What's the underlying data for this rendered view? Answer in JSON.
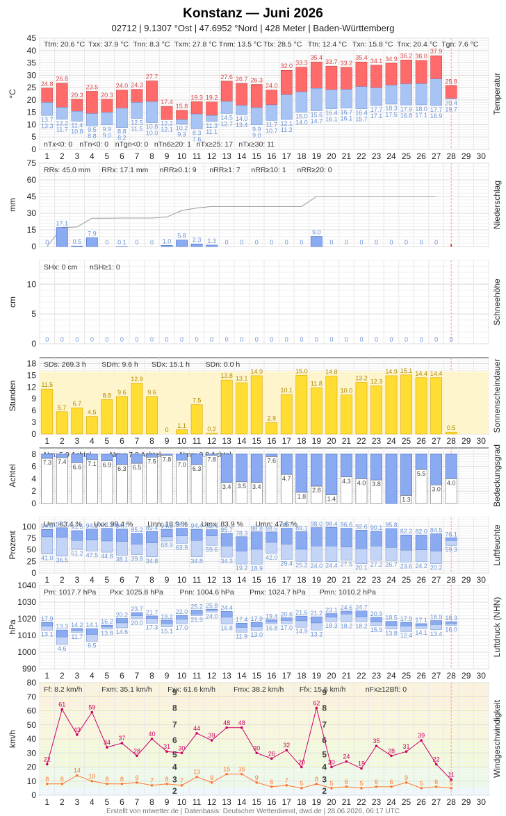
{
  "header": {
    "title": "Konstanz  —  Juni 2026",
    "subtitle": "02712  |  9.1307 °Ost  |  47.6952 °Nord  |  428 Meter  |  Baden-Württemberg"
  },
  "footer": "Erstellt von mtwetter.de | Datenbasis: Deutscher Wetterdienst, dwd.de | 28.06.2026, 06:17 UTC",
  "colors": {
    "tmax_bar": "#ff6b6b",
    "tmin_bar": "#a8c4f5",
    "precip_bar": "#8aabf2",
    "sun_bar": "#ffdd33",
    "sun_bg": "#fff5cc",
    "cloud_bar": "#8aabf2",
    "hum_dark": "#8aabf2",
    "hum_light": "#c3d4f7",
    "wind_max": "#cc0066",
    "wind_mean": "#ff7733",
    "red_text": "#d94444",
    "blue_text": "#6a93d6"
  },
  "chart_data": [
    {
      "type": "bar",
      "id": "temp",
      "ylabel": "°C",
      "side_label": "Temperatur",
      "ylim": [
        0,
        45
      ],
      "yticks": [
        0,
        5,
        10,
        15,
        20,
        25,
        30,
        35,
        40,
        45
      ],
      "x": [
        1,
        2,
        3,
        4,
        5,
        6,
        7,
        8,
        9,
        10,
        11,
        12,
        13,
        14,
        15,
        16,
        17,
        18,
        19,
        20,
        21,
        22,
        23,
        24,
        25,
        26,
        27,
        28,
        29,
        30
      ],
      "top_stats": [
        "Ttm: 20.6 °C",
        "Txx: 37.9 °C",
        "Tnn: 8.3 °C",
        "Txm: 27.8 °C",
        "Tnm: 13.5 °C",
        "Ttx: 28.5 °C",
        "Ttn: 12.4 °C",
        "Txn: 15.8 °C",
        "Tnx: 20.4 °C",
        "Tgn: 7.6 °C"
      ],
      "bottom_stats": [
        "nTx<0: 0",
        "nTn<0: 0",
        "nTgn<0: 0",
        "nTn6≥20: 1",
        "nTx≥25: 17",
        "nTx≥30: 11"
      ],
      "series": [
        {
          "name": "Tmax",
          "values": [
            24.8,
            26.8,
            20.3,
            23.5,
            20.3,
            24.0,
            24.3,
            27.7,
            17.4,
            15.8,
            19.3,
            19.2,
            27.6,
            26.7,
            26.3,
            24.0,
            32.0,
            33.3,
            35.4,
            33.7,
            33.2,
            35.4,
            34.1,
            34.9,
            36.2,
            36.0,
            37.9,
            25.8,
            null,
            null
          ]
        },
        {
          "name": "Tmean",
          "values": [
            19.0,
            17.0,
            15.4,
            14.5,
            15.0,
            16.7,
            19.0,
            19.3,
            12.0,
            12.0,
            14.3,
            13.7,
            19.4,
            17.8,
            16.9,
            18.0,
            22.1,
            23.3,
            24.7,
            24.1,
            24.3,
            25.4,
            24.9,
            26.0,
            26.5,
            26.6,
            28.5,
            20.6,
            null,
            null
          ]
        },
        {
          "name": "Tmin",
          "values": [
            13.7,
            12.2,
            11.4,
            9.5,
            9.9,
            8.8,
            12.5,
            10.8,
            12.2,
            10.2,
            8.3,
            11.3,
            14.5,
            14.0,
            9.9,
            11.7,
            12.1,
            15.0,
            15.6,
            16.4,
            16.7,
            16.4,
            17.7,
            18.3,
            17.9,
            18.0,
            17.7,
            20.4,
            null,
            null
          ]
        },
        {
          "name": "Tg",
          "values": [
            13.3,
            11.7,
            10.8,
            8.8,
            9.0,
            8.2,
            11.5,
            10.0,
            12.1,
            9.3,
            7.6,
            11.1,
            12.7,
            13.4,
            9.0,
            10.7,
            11.2,
            14.0,
            14.7,
            16.1,
            16.1,
            15.7,
            17.1,
            17.5,
            16.8,
            17.1,
            16.9,
            19.7,
            null,
            null
          ]
        }
      ]
    },
    {
      "type": "bar",
      "id": "precip",
      "ylabel": "mm",
      "side_label": "Niederschlag",
      "ylim": [
        0,
        75
      ],
      "yticks": [
        0,
        15,
        30,
        45,
        60,
        75
      ],
      "ytick_labels": [
        "0",
        "15",
        "30",
        "45",
        "60",
        "75"
      ],
      "top_stats": [
        "RRs: 45.0 mm",
        "RRx: 17.1 mm",
        "nRR≥0.1: 9",
        "nRR≥1: 7",
        "nRR≥10: 1",
        "nRR≥20: 0"
      ],
      "values": [
        0,
        17.1,
        0.5,
        7.9,
        0,
        0.1,
        0,
        0,
        1.0,
        5.8,
        2.3,
        1.3,
        0,
        0,
        0,
        0,
        0,
        0,
        9.0,
        0,
        0,
        0,
        0,
        0,
        0,
        0,
        0,
        0,
        null,
        null
      ],
      "labels": [
        "0",
        "17.1",
        "0.5",
        "7.9",
        "0",
        "0.1",
        "0",
        "0",
        "1.0",
        "5.8",
        "2.3",
        "1.3",
        "0",
        "0",
        "0",
        "0",
        "0",
        "0",
        "9.0",
        "0",
        "0",
        "0",
        "0",
        "0",
        "0",
        "0",
        "0",
        "",
        "",
        ""
      ],
      "series": [
        {
          "name": "cumulative",
          "values": [
            0,
            17.1,
            17.6,
            25.5,
            25.5,
            25.6,
            25.6,
            25.6,
            26.6,
            32.4,
            34.7,
            36.0,
            36.0,
            36.0,
            36.0,
            36.0,
            36.0,
            36.0,
            45.0,
            45.0,
            45.0,
            45.0,
            45.0,
            45.0,
            45.0,
            45.0,
            45.0,
            null,
            null,
            null
          ]
        }
      ]
    },
    {
      "type": "bar",
      "id": "snow",
      "ylabel": "cm",
      "side_label": "Schneehöhe",
      "ylim": [
        0,
        14
      ],
      "yticks": [
        0,
        5,
        10
      ],
      "top_stats": [
        "SHx: 0 cm",
        "nSH≥1: 0"
      ],
      "values": [
        0,
        0,
        0,
        0,
        0,
        0,
        0,
        0,
        0,
        0,
        0,
        0,
        0,
        0,
        0,
        0,
        0,
        0,
        0,
        0,
        0,
        0,
        0,
        0,
        0,
        0,
        0,
        0,
        null,
        null
      ]
    },
    {
      "type": "bar",
      "id": "sun",
      "ylabel": "Stunden",
      "side_label": "Sonnenscheindauer",
      "ylim": [
        0,
        19.5
      ],
      "yticks": [
        0,
        3,
        6,
        9,
        12,
        15,
        18
      ],
      "top_stats": [
        "SDs: 269.3 h",
        "SDm: 9.6 h",
        "SDx: 15.1 h",
        "SDn: 0.0 h"
      ],
      "values": [
        11.5,
        5.7,
        6.7,
        4.5,
        8.8,
        9.6,
        12.9,
        9.6,
        0,
        1.1,
        7.5,
        0.2,
        13.8,
        13.1,
        14.9,
        2.9,
        10.1,
        15.0,
        11.8,
        14.8,
        10.0,
        13.2,
        12.3,
        14.9,
        15.1,
        14.4,
        14.4,
        0.5,
        null,
        null
      ],
      "possible": [
        16,
        16,
        16,
        16,
        16,
        16,
        16,
        16,
        16,
        16,
        16,
        16,
        16,
        16,
        16,
        16,
        16,
        16,
        16,
        16,
        16,
        16,
        16,
        16,
        16,
        16,
        16,
        16,
        16,
        16
      ]
    },
    {
      "type": "bar",
      "id": "cloud",
      "ylabel": "Achtel",
      "side_label": "Bedeckungsgrad",
      "ylim": [
        0,
        9
      ],
      "yticks": [
        0,
        2,
        4,
        6,
        8
      ],
      "top_stats": [
        "Nm: 5.0 Achtel",
        "Nmx: 7.8 Achtel",
        "Nmn: 0.0 Achtel"
      ],
      "values": [
        7.3,
        7.4,
        6.6,
        7.1,
        6.9,
        6.3,
        6.5,
        7.5,
        7.8,
        7.0,
        6.3,
        7.8,
        3.4,
        3.5,
        3.4,
        7.6,
        4.7,
        1.8,
        2.8,
        1.4,
        4.3,
        4.0,
        3.8,
        0.0,
        1.3,
        5.5,
        3.0,
        4.0,
        null,
        null
      ]
    },
    {
      "type": "bar",
      "id": "humidity",
      "ylabel": "Prozent",
      "side_label": "Luftfeuchte",
      "ylim": [
        0,
        120
      ],
      "yticks": [
        0,
        25,
        50,
        75,
        100
      ],
      "top_stats": [
        "Um: 63.4 %",
        "Uxx: 98.4 %",
        "Unn: 18.9 %",
        "Umx: 83.9 %",
        "Umn: 47.6 %"
      ],
      "series": [
        {
          "name": "Umax",
          "values": [
            94.0,
            97.7,
            91.5,
            94.8,
            96.3,
            94.7,
            85.2,
            89.4,
            94.5,
            96.5,
            94.4,
            93.4,
            85.7,
            78.3,
            88.8,
            88.6,
            96.7,
            89.1,
            98.0,
            98.4,
            96.6,
            92.6,
            90.1,
            95.8,
            82.2,
            82.0,
            84.5,
            76.1,
            null,
            null
          ]
        },
        {
          "name": "Umean",
          "values": [
            78,
            77,
            70,
            71,
            69,
            68,
            62,
            65,
            78,
            80,
            70,
            80,
            58,
            47,
            51,
            66,
            62,
            51,
            58,
            58,
            56,
            52,
            58,
            55,
            49,
            50,
            47,
            70,
            null,
            null
          ]
        },
        {
          "name": "Umin",
          "values": [
            41.0,
            36.5,
            51.2,
            47.5,
            44.8,
            38.1,
            39.8,
            34.8,
            68.9,
            63.9,
            34.8,
            59.6,
            34.3,
            19.2,
            18.9,
            42.0,
            29.4,
            25.2,
            24.0,
            24.4,
            27.5,
            20.1,
            27.2,
            26.7,
            23.6,
            24.2,
            20.2,
            59.3,
            null,
            null
          ]
        }
      ]
    },
    {
      "type": "bar",
      "id": "pressure",
      "ylabel": "hPa",
      "side_label": "Luftdruck (NHN)",
      "ylim": [
        990,
        1040
      ],
      "yticks": [
        990,
        1000,
        1010,
        1020,
        1030,
        1040
      ],
      "top_stats": [
        "Pm: 1017.7 hPa",
        "Pxx: 1025.8 hPa",
        "Pnn: 1004.6 hPa",
        "Pmx: 1024.7 hPa",
        "Pmn: 1010.2 hPa"
      ],
      "series": [
        {
          "name": "Pmax",
          "values": [
            17.9,
            13.3,
            14.2,
            14.1,
            16.2,
            20.2,
            23.7,
            21.7,
            19.2,
            22.0,
            25.2,
            25.8,
            24.4,
            17.4,
            17.9,
            19.4,
            20.6,
            21.6,
            21.2,
            23.1,
            24.6,
            24.7,
            20.9,
            18.5,
            17.9,
            17.1,
            18.9,
            18.3,
            null,
            null
          ]
        },
        {
          "name": "Pmean",
          "values": [
            15.5,
            9.0,
            12.8,
            10.5,
            15.0,
            17.5,
            21.8,
            20.2,
            17.0,
            19.8,
            22.8,
            25.0,
            21.0,
            14.8,
            15.2,
            18.0,
            19.0,
            18.8,
            17.5,
            21.0,
            22.8,
            21.2,
            18.0,
            16.0,
            15.5,
            15.8,
            16.5,
            17.0,
            null,
            null
          ]
        },
        {
          "name": "Pmin",
          "values": [
            13.1,
            4.6,
            11.7,
            6.5,
            13.8,
            14.6,
            20.0,
            17.3,
            15.1,
            17.0,
            21.9,
            24.0,
            16.8,
            11.9,
            13.0,
            16.8,
            17.0,
            14.9,
            13.2,
            18.3,
            18.2,
            18.2,
            15.9,
            13.8,
            12.4,
            14.1,
            13.4,
            16.0,
            null,
            null
          ]
        }
      ]
    },
    {
      "type": "line",
      "id": "wind",
      "ylabel": "km/h",
      "side_label": "Windgeschwindigkeit",
      "ylim": [
        0,
        80
      ],
      "yticks": [
        0,
        10,
        20,
        30,
        40,
        50,
        60,
        70,
        80
      ],
      "top_stats": [
        "Ff: 8.2 km/h",
        "Fxm: 35.1 km/h",
        "Fxx: 61.6 km/h",
        "Fmx: 38.2 km/h",
        "Ffx: 15.5 km/h",
        "nFx≥12Bft: 0"
      ],
      "beaufort_labels": [
        "2",
        "3",
        "4",
        "5",
        "6",
        "7",
        "8",
        "9"
      ],
      "series": [
        {
          "name": "Fx",
          "values": [
            22,
            61,
            43,
            59,
            34,
            37,
            28,
            40,
            31,
            30,
            44,
            39,
            48,
            48,
            30,
            26,
            32,
            20,
            62,
            20,
            24,
            19,
            35,
            28,
            31,
            39,
            22,
            11,
            null,
            null
          ]
        },
        {
          "name": "Ff",
          "values": [
            8,
            8,
            14,
            10,
            8,
            8,
            9,
            7,
            8,
            7,
            13,
            9,
            15,
            15,
            9,
            6,
            7,
            5,
            8,
            5,
            6,
            5,
            6,
            6,
            9,
            5,
            6,
            5,
            null,
            null
          ]
        }
      ]
    }
  ]
}
